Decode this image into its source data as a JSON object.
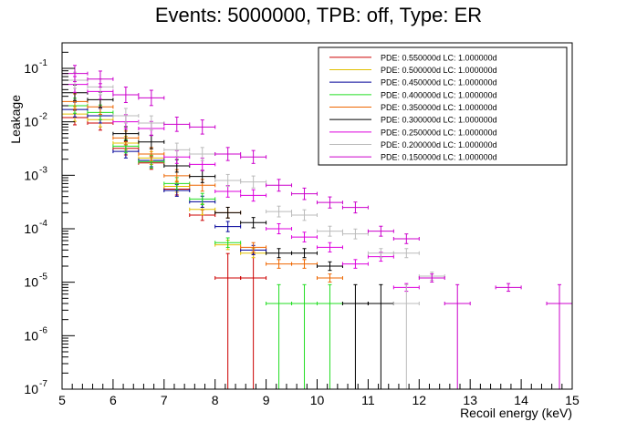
{
  "chart_data": {
    "type": "scatter",
    "title": "Events: 5000000, TPB: off, Type: ER",
    "xlabel": "Recoil energy (keV)",
    "ylabel": "Leakage",
    "xlim": [
      5,
      15
    ],
    "ylim": [
      1e-07,
      0.3
    ],
    "yscale": "log",
    "grid": false,
    "legend_position": "top-right",
    "x_ticks": [
      "5",
      "6",
      "7",
      "8",
      "9",
      "10",
      "11",
      "12",
      "13",
      "14",
      "15"
    ],
    "y_ticks": [
      {
        "base": "10",
        "exp": "-7",
        "value": 1e-07
      },
      {
        "base": "10",
        "exp": "-6",
        "value": 1e-06
      },
      {
        "base": "10",
        "exp": "-5",
        "value": 1e-05
      },
      {
        "base": "10",
        "exp": "-4",
        "value": 0.0001
      },
      {
        "base": "10",
        "exp": "-3",
        "value": 0.001
      },
      {
        "base": "10",
        "exp": "-2",
        "value": 0.01
      },
      {
        "base": "10",
        "exp": "-1",
        "value": 0.1
      }
    ],
    "series": [
      {
        "name": "PDE: 0.550000d LC: 1.000000d",
        "color": "#cc0000",
        "points": [
          {
            "x": 5.25,
            "y": 0.012,
            "xerr": 0.25
          },
          {
            "x": 5.75,
            "y": 0.0095,
            "xerr": 0.25
          },
          {
            "x": 6.25,
            "y": 0.0032,
            "xerr": 0.25
          },
          {
            "x": 6.75,
            "y": 0.0017,
            "xerr": 0.25
          },
          {
            "x": 7.25,
            "y": 0.00055,
            "xerr": 0.25
          },
          {
            "x": 7.75,
            "y": 0.00018,
            "xerr": 0.25
          },
          {
            "x": 8.25,
            "y": 1.2e-05,
            "xerr": 0.25,
            "down_to_axis": true
          },
          {
            "x": 8.75,
            "y": 1.2e-05,
            "xerr": 0.25,
            "down_to_axis": true
          }
        ]
      },
      {
        "name": "PDE: 0.500000d LC: 1.000000d",
        "color": "#e0c000",
        "points": [
          {
            "x": 5.25,
            "y": 0.014,
            "xerr": 0.25
          },
          {
            "x": 5.75,
            "y": 0.011,
            "xerr": 0.25
          },
          {
            "x": 6.25,
            "y": 0.004,
            "xerr": 0.25
          },
          {
            "x": 6.75,
            "y": 0.0021,
            "xerr": 0.25
          },
          {
            "x": 7.25,
            "y": 0.00062,
            "xerr": 0.25
          },
          {
            "x": 7.75,
            "y": 0.00023,
            "xerr": 0.25
          },
          {
            "x": 8.25,
            "y": 5e-05,
            "xerr": 0.25
          },
          {
            "x": 8.75,
            "y": 3.5e-05,
            "xerr": 0.25
          }
        ]
      },
      {
        "name": "PDE: 0.450000d LC: 1.000000d",
        "color": "#000099",
        "points": [
          {
            "x": 5.25,
            "y": 0.017,
            "xerr": 0.25
          },
          {
            "x": 5.75,
            "y": 0.013,
            "xerr": 0.25
          },
          {
            "x": 6.25,
            "y": 0.0028,
            "xerr": 0.25
          },
          {
            "x": 6.75,
            "y": 0.0019,
            "xerr": 0.25
          },
          {
            "x": 7.25,
            "y": 0.00052,
            "xerr": 0.25
          },
          {
            "x": 7.75,
            "y": 0.00032,
            "xerr": 0.25
          },
          {
            "x": 8.25,
            "y": 0.00011,
            "xerr": 0.25
          },
          {
            "x": 8.75,
            "y": 4e-05,
            "xerr": 0.25
          }
        ]
      },
      {
        "name": "PDE: 0.400000d LC: 1.000000d",
        "color": "#22dd22",
        "points": [
          {
            "x": 5.25,
            "y": 0.02,
            "xerr": 0.25
          },
          {
            "x": 5.75,
            "y": 0.015,
            "xerr": 0.25
          },
          {
            "x": 6.25,
            "y": 0.0035,
            "xerr": 0.25
          },
          {
            "x": 6.75,
            "y": 0.0018,
            "xerr": 0.25
          },
          {
            "x": 7.25,
            "y": 0.0007,
            "xerr": 0.25
          },
          {
            "x": 7.75,
            "y": 0.00036,
            "xerr": 0.25
          },
          {
            "x": 8.25,
            "y": 5.5e-05,
            "xerr": 0.25
          },
          {
            "x": 9.25,
            "y": 4e-06,
            "xerr": 0.25,
            "down_to_axis": true
          },
          {
            "x": 9.75,
            "y": 4e-06,
            "xerr": 0.25,
            "down_to_axis": true
          },
          {
            "x": 10.25,
            "y": 4e-06,
            "xerr": 0.25,
            "down_to_axis": true
          }
        ]
      },
      {
        "name": "PDE: 0.350000d LC: 1.000000d",
        "color": "#ee6600",
        "points": [
          {
            "x": 5.25,
            "y": 0.024,
            "xerr": 0.25
          },
          {
            "x": 5.75,
            "y": 0.019,
            "xerr": 0.25
          },
          {
            "x": 6.25,
            "y": 0.005,
            "xerr": 0.25
          },
          {
            "x": 6.75,
            "y": 0.0025,
            "xerr": 0.25
          },
          {
            "x": 7.25,
            "y": 0.00098,
            "xerr": 0.25
          },
          {
            "x": 7.75,
            "y": 0.00065,
            "xerr": 0.25
          },
          {
            "x": 8.25,
            "y": 0.0002,
            "xerr": 0.25
          },
          {
            "x": 8.75,
            "y": 4.5e-05,
            "xerr": 0.25
          },
          {
            "x": 9.25,
            "y": 2.2e-05,
            "xerr": 0.25
          },
          {
            "x": 9.75,
            "y": 2.2e-05,
            "xerr": 0.25
          },
          {
            "x": 10.25,
            "y": 1.2e-05,
            "xerr": 0.25
          }
        ]
      },
      {
        "name": "PDE: 0.300000d LC: 1.000000d",
        "color": "#000000",
        "points": [
          {
            "x": 5.25,
            "y": 0.035,
            "xerr": 0.25
          },
          {
            "x": 5.75,
            "y": 0.026,
            "xerr": 0.25
          },
          {
            "x": 6.25,
            "y": 0.006,
            "xerr": 0.25
          },
          {
            "x": 6.75,
            "y": 0.0042,
            "xerr": 0.25
          },
          {
            "x": 7.25,
            "y": 0.0015,
            "xerr": 0.25
          },
          {
            "x": 7.75,
            "y": 0.00095,
            "xerr": 0.25
          },
          {
            "x": 8.25,
            "y": 0.0002,
            "xerr": 0.25
          },
          {
            "x": 8.75,
            "y": 0.00013,
            "xerr": 0.25
          },
          {
            "x": 9.25,
            "y": 3.5e-05,
            "xerr": 0.25
          },
          {
            "x": 9.75,
            "y": 3.5e-05,
            "xerr": 0.25
          },
          {
            "x": 10.25,
            "y": 2e-05,
            "xerr": 0.25
          },
          {
            "x": 10.75,
            "y": 4e-06,
            "xerr": 0.25,
            "down_to_axis": true
          },
          {
            "x": 11.25,
            "y": 4e-06,
            "xerr": 0.25,
            "down_to_axis": true
          }
        ]
      },
      {
        "name": "PDE: 0.250000d LC: 1.000000d",
        "color": "#dd00dd",
        "points": [
          {
            "x": 5.25,
            "y": 0.05,
            "xerr": 0.25
          },
          {
            "x": 5.75,
            "y": 0.037,
            "xerr": 0.25
          },
          {
            "x": 6.25,
            "y": 0.01,
            "xerr": 0.25
          },
          {
            "x": 6.75,
            "y": 0.0075,
            "xerr": 0.25
          },
          {
            "x": 7.25,
            "y": 0.0022,
            "xerr": 0.25
          },
          {
            "x": 7.75,
            "y": 0.0016,
            "xerr": 0.25
          },
          {
            "x": 8.25,
            "y": 0.0005,
            "xerr": 0.25
          },
          {
            "x": 8.75,
            "y": 0.00042,
            "xerr": 0.25
          },
          {
            "x": 9.25,
            "y": 0.0001,
            "xerr": 0.25
          },
          {
            "x": 9.75,
            "y": 7e-05,
            "xerr": 0.25
          },
          {
            "x": 10.25,
            "y": 4.5e-05,
            "xerr": 0.25
          },
          {
            "x": 10.75,
            "y": 2.2e-05,
            "xerr": 0.25
          },
          {
            "x": 11.25,
            "y": 3e-05,
            "xerr": 0.25
          },
          {
            "x": 11.75,
            "y": 8e-06,
            "xerr": 0.25
          }
        ]
      },
      {
        "name": "PDE: 0.200000d LC: 1.000000d",
        "color": "#bbbbbb",
        "points": [
          {
            "x": 5.25,
            "y": 0.06,
            "xerr": 0.25
          },
          {
            "x": 5.75,
            "y": 0.045,
            "xerr": 0.25
          },
          {
            "x": 6.25,
            "y": 0.013,
            "xerr": 0.25
          },
          {
            "x": 6.75,
            "y": 0.0095,
            "xerr": 0.25
          },
          {
            "x": 7.25,
            "y": 0.003,
            "xerr": 0.25
          },
          {
            "x": 7.75,
            "y": 0.0025,
            "xerr": 0.25
          },
          {
            "x": 8.25,
            "y": 0.0008,
            "xerr": 0.25
          },
          {
            "x": 8.75,
            "y": 0.00075,
            "xerr": 0.25
          },
          {
            "x": 9.25,
            "y": 0.00021,
            "xerr": 0.25
          },
          {
            "x": 9.75,
            "y": 0.00018,
            "xerr": 0.25
          },
          {
            "x": 10.25,
            "y": 9e-05,
            "xerr": 0.25
          },
          {
            "x": 10.75,
            "y": 8e-05,
            "xerr": 0.25
          },
          {
            "x": 11.25,
            "y": 3.5e-05,
            "xerr": 0.25
          },
          {
            "x": 11.75,
            "y": 3.5e-05,
            "xerr": 0.25
          },
          {
            "x": 12.25,
            "y": 1.3e-05,
            "xerr": 0.25
          },
          {
            "x": 11.75,
            "y": 4e-06,
            "xerr": 0.25,
            "down_to_axis": true
          }
        ]
      },
      {
        "name": "PDE: 0.150000d LC: 1.000000d",
        "color": "#cc00cc",
        "points": [
          {
            "x": 5.25,
            "y": 0.08,
            "xerr": 0.25
          },
          {
            "x": 5.75,
            "y": 0.063,
            "xerr": 0.25
          },
          {
            "x": 6.25,
            "y": 0.032,
            "xerr": 0.25
          },
          {
            "x": 6.75,
            "y": 0.028,
            "xerr": 0.25
          },
          {
            "x": 7.25,
            "y": 0.009,
            "xerr": 0.25
          },
          {
            "x": 7.75,
            "y": 0.008,
            "xerr": 0.25
          },
          {
            "x": 8.25,
            "y": 0.0025,
            "xerr": 0.25
          },
          {
            "x": 8.75,
            "y": 0.0022,
            "xerr": 0.25
          },
          {
            "x": 9.25,
            "y": 0.00065,
            "xerr": 0.25
          },
          {
            "x": 9.75,
            "y": 0.00045,
            "xerr": 0.25
          },
          {
            "x": 10.25,
            "y": 0.00031,
            "xerr": 0.25
          },
          {
            "x": 10.75,
            "y": 0.00025,
            "xerr": 0.25
          },
          {
            "x": 11.25,
            "y": 9e-05,
            "xerr": 0.25
          },
          {
            "x": 11.75,
            "y": 6.5e-05,
            "xerr": 0.25
          },
          {
            "x": 12.25,
            "y": 1.2e-05,
            "xerr": 0.25
          },
          {
            "x": 12.75,
            "y": 4e-06,
            "xerr": 0.25,
            "down_to_axis": true
          },
          {
            "x": 13.75,
            "y": 8e-06,
            "xerr": 0.25
          },
          {
            "x": 14.75,
            "y": 4e-06,
            "xerr": 0.25,
            "down_to_axis": true
          }
        ]
      }
    ]
  }
}
